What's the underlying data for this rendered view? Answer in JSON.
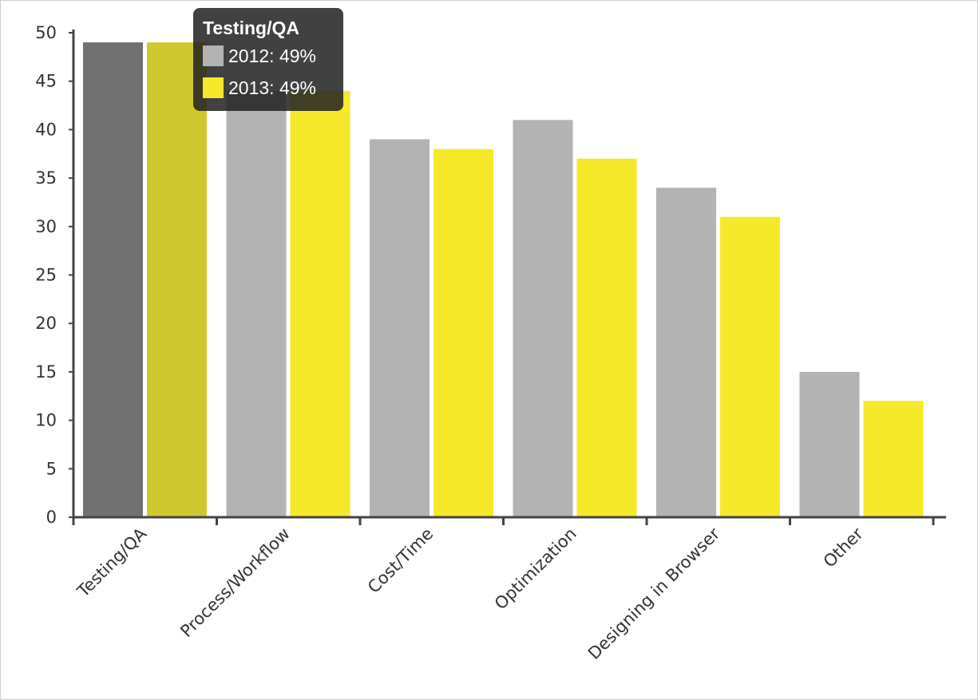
{
  "chart_data": {
    "type": "bar",
    "categories": [
      "Testing/QA",
      "Process/Workflow",
      "Cost/Time",
      "Optimization",
      "Designing in Browser",
      "Other"
    ],
    "series": [
      {
        "name": "2012",
        "values": [
          49,
          44,
          39,
          41,
          34,
          15
        ],
        "color": "#b3b3b3",
        "highlight_color": "#717171"
      },
      {
        "name": "2013",
        "values": [
          49,
          44,
          38,
          37,
          31,
          12
        ],
        "color": "#f5e92a",
        "highlight_color": "#cfc92f"
      }
    ],
    "highlighted_category": "Testing/QA",
    "ylim": [
      0,
      50
    ],
    "yticks": [
      0,
      5,
      10,
      15,
      20,
      25,
      30,
      35,
      40,
      45,
      50
    ],
    "title": "",
    "xlabel": "",
    "ylabel": "",
    "grid": false,
    "legend": "none"
  },
  "tooltip": {
    "title": "Testing/QA",
    "rows": [
      {
        "label": "2012: 49%",
        "color": "#b3b3b3"
      },
      {
        "label": "2013: 49%",
        "color": "#f5e92a"
      }
    ]
  }
}
